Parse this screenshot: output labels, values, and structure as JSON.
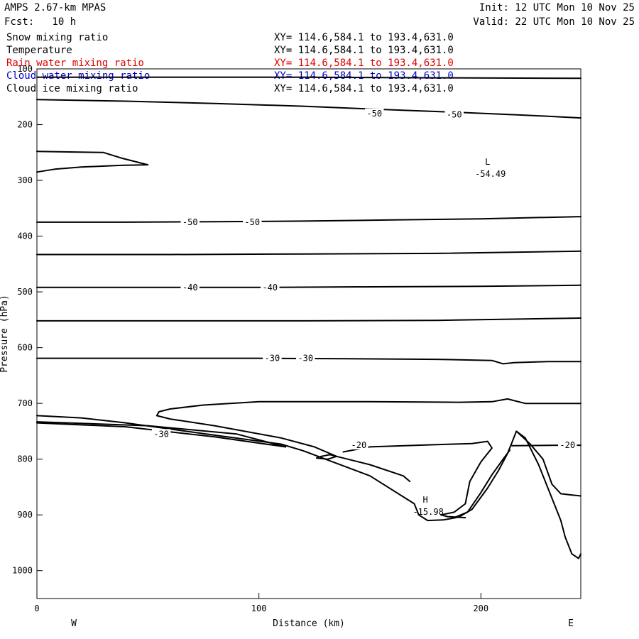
{
  "header": {
    "model": "AMPS 2.67-km MPAS",
    "forecast": "Fcst:   10 h",
    "init": "Init: 12 UTC Mon 10 Nov 25",
    "valid": "Valid: 22 UTC Mon 10 Nov 25"
  },
  "fields": [
    {
      "name": "Snow mixing ratio",
      "xy": "XY= 114.6,584.1 to 193.4,631.0",
      "color": "#000000"
    },
    {
      "name": "Temperature",
      "xy": "XY= 114.6,584.1 to 193.4,631.0",
      "color": "#000000"
    },
    {
      "name": "Rain water mixing ratio",
      "xy": "XY= 114.6,584.1 to 193.4,631.0",
      "color": "#e00000"
    },
    {
      "name": "Cloud water mixing ratio",
      "xy": "XY= 114.6,584.1 to 193.4,631.0",
      "color": "#0000cc"
    },
    {
      "name": "Cloud ice mixing ratio",
      "xy": "XY= 114.6,584.1 to 193.4,631.0",
      "color": "#000000"
    }
  ],
  "chart_data": {
    "type": "line",
    "xlabel": "Distance (km)",
    "ylabel": "Pressure (hPa)",
    "xlim": [
      0,
      245
    ],
    "ylim": [
      1050,
      100
    ],
    "x_ticks": [
      0,
      100,
      200
    ],
    "y_ticks": [
      100,
      200,
      300,
      400,
      500,
      600,
      700,
      800,
      900,
      1000
    ],
    "left_end_label": "W",
    "right_end_label": "E",
    "contour_labels": [
      {
        "text": "-50",
        "x": 152,
        "p": 180
      },
      {
        "text": "-50",
        "x": 188,
        "p": 182
      },
      {
        "text": "-50",
        "x": 69,
        "p": 375
      },
      {
        "text": "-50",
        "x": 97,
        "p": 375
      },
      {
        "text": "-40",
        "x": 69,
        "p": 492
      },
      {
        "text": "-40",
        "x": 105,
        "p": 492
      },
      {
        "text": "-30",
        "x": 106,
        "p": 619
      },
      {
        "text": "-30",
        "x": 121,
        "p": 619
      },
      {
        "text": "-30",
        "x": 56,
        "p": 755
      },
      {
        "text": "-20",
        "x": 145,
        "p": 775
      },
      {
        "text": "-20",
        "x": 239,
        "p": 775
      }
    ],
    "extrema": [
      {
        "type": "L",
        "value": "-54.49",
        "x": 203,
        "p": 282
      },
      {
        "type": "H",
        "value": "-15.98",
        "x": 175,
        "p": 888
      }
    ],
    "contours": [
      {
        "name": "top_line",
        "points": [
          [
            0,
            115
          ],
          [
            60,
            115
          ],
          [
            120,
            115
          ],
          [
            180,
            116
          ],
          [
            245,
            117
          ]
        ]
      },
      {
        "name": "minus50_upper",
        "points": [
          [
            0,
            155
          ],
          [
            40,
            158
          ],
          [
            80,
            162
          ],
          [
            120,
            167
          ],
          [
            150,
            172
          ],
          [
            190,
            178
          ],
          [
            220,
            183
          ],
          [
            245,
            188
          ]
        ]
      },
      {
        "name": "upper_tongue",
        "points": [
          [
            0,
            248
          ],
          [
            30,
            250
          ],
          [
            38,
            260
          ],
          [
            50,
            272
          ],
          [
            38,
            273
          ],
          [
            20,
            276
          ],
          [
            8,
            280
          ],
          [
            0,
            285
          ]
        ]
      },
      {
        "name": "minus50_mid",
        "points": [
          [
            0,
            375
          ],
          [
            40,
            375
          ],
          [
            80,
            374
          ],
          [
            120,
            373
          ],
          [
            160,
            371
          ],
          [
            200,
            369
          ],
          [
            245,
            365
          ]
        ]
      },
      {
        "name": "iso_430",
        "points": [
          [
            0,
            433
          ],
          [
            60,
            433
          ],
          [
            120,
            432
          ],
          [
            180,
            431
          ],
          [
            245,
            427
          ]
        ]
      },
      {
        "name": "minus40",
        "points": [
          [
            0,
            492
          ],
          [
            50,
            492
          ],
          [
            100,
            492
          ],
          [
            150,
            491
          ],
          [
            200,
            490
          ],
          [
            245,
            488
          ]
        ]
      },
      {
        "name": "iso_550",
        "points": [
          [
            0,
            552
          ],
          [
            60,
            552
          ],
          [
            120,
            552
          ],
          [
            180,
            551
          ],
          [
            245,
            547
          ]
        ]
      },
      {
        "name": "minus30",
        "points": [
          [
            0,
            619
          ],
          [
            50,
            619
          ],
          [
            100,
            619
          ],
          [
            140,
            620
          ],
          [
            180,
            621
          ],
          [
            205,
            623
          ],
          [
            210,
            629
          ],
          [
            215,
            627
          ],
          [
            230,
            625
          ],
          [
            245,
            625
          ]
        ]
      },
      {
        "name": "iso_700",
        "points": [
          [
            245,
            700
          ],
          [
            220,
            700
          ],
          [
            212,
            692
          ],
          [
            205,
            697
          ],
          [
            190,
            698
          ],
          [
            150,
            697
          ],
          [
            100,
            697
          ],
          [
            75,
            703
          ],
          [
            60,
            710
          ],
          [
            55,
            715
          ],
          [
            54,
            722
          ],
          [
            60,
            728
          ],
          [
            80,
            740
          ],
          [
            110,
            762
          ],
          [
            125,
            778
          ],
          [
            135,
            795
          ],
          [
            150,
            810
          ],
          [
            165,
            830
          ],
          [
            168,
            840
          ]
        ]
      },
      {
        "name": "minus20",
        "points": [
          [
            138,
            787
          ],
          [
            150,
            778
          ],
          [
            180,
            774
          ],
          [
            196,
            772
          ],
          [
            203,
            768
          ],
          [
            205,
            780
          ],
          [
            200,
            805
          ],
          [
            195,
            840
          ],
          [
            193,
            880
          ],
          [
            188,
            895
          ],
          [
            182,
            900
          ],
          [
            185,
            903
          ],
          [
            193,
            905
          ]
        ]
      },
      {
        "name": "minus20_right",
        "points": [
          [
            214,
            776
          ],
          [
            235,
            775
          ],
          [
            245,
            775
          ]
        ]
      },
      {
        "name": "small_loop",
        "points": [
          [
            128,
            795
          ],
          [
            132,
            792
          ],
          [
            135,
            795
          ],
          [
            131,
            800
          ],
          [
            126,
            798
          ],
          [
            128,
            795
          ]
        ]
      },
      {
        "name": "terrain_outer",
        "points": [
          [
            0,
            722
          ],
          [
            20,
            726
          ],
          [
            40,
            735
          ],
          [
            80,
            757
          ],
          [
            110,
            773
          ],
          [
            120,
            785
          ],
          [
            130,
            800
          ],
          [
            150,
            830
          ],
          [
            170,
            880
          ],
          [
            172,
            900
          ],
          [
            176,
            910
          ],
          [
            183,
            909
          ],
          [
            190,
            904
          ],
          [
            196,
            890
          ],
          [
            203,
            852
          ],
          [
            208,
            820
          ],
          [
            212,
            790
          ],
          [
            214,
            770
          ],
          [
            216,
            750
          ],
          [
            220,
            762
          ],
          [
            226,
            810
          ],
          [
            230,
            850
          ],
          [
            236,
            910
          ],
          [
            238,
            940
          ],
          [
            241,
            970
          ],
          [
            244,
            978
          ],
          [
            245,
            970
          ]
        ]
      },
      {
        "name": "terrain_inner",
        "points": [
          [
            0,
            733
          ],
          [
            50,
            740
          ],
          [
            90,
            755
          ],
          [
            112,
            778
          ]
        ]
      },
      {
        "name": "terrain_shadow",
        "points": [
          [
            0,
            735
          ],
          [
            40,
            742
          ],
          [
            80,
            760
          ],
          [
            112,
            778
          ]
        ]
      },
      {
        "name": "right_hump",
        "points": [
          [
            216,
            750
          ],
          [
            222,
            772
          ],
          [
            228,
            800
          ],
          [
            232,
            845
          ],
          [
            236,
            862
          ],
          [
            240,
            864
          ],
          [
            245,
            866
          ]
        ]
      },
      {
        "name": "ridge_left",
        "points": [
          [
            188,
            905
          ],
          [
            194,
            895
          ],
          [
            200,
            860
          ],
          [
            205,
            828
          ],
          [
            210,
            800
          ],
          [
            213,
            784
          ]
        ]
      }
    ]
  }
}
